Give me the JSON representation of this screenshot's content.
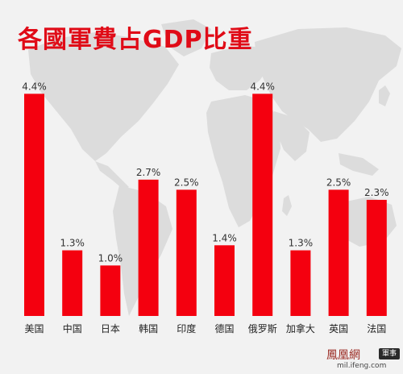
{
  "chart_data": {
    "type": "bar",
    "title": "各國軍費占GDP比重",
    "categories": [
      "美国",
      "中国",
      "日本",
      "韩国",
      "印度",
      "德国",
      "俄罗斯",
      "加拿大",
      "英国",
      "法国"
    ],
    "values": [
      4.4,
      1.3,
      1.0,
      2.7,
      2.5,
      1.4,
      4.4,
      1.3,
      2.5,
      2.3
    ],
    "value_labels": [
      "4.4%",
      "1.3%",
      "1.0%",
      "2.7%",
      "2.5%",
      "1.4%",
      "4.4%",
      "1.3%",
      "2.5%",
      "2.3%"
    ],
    "ylim": [
      0,
      5.3
    ],
    "grid": false,
    "bar_color": "#f4000f",
    "title_color": "#e00b17"
  },
  "watermark": {
    "brand": "鳳凰網",
    "badge": "軍事",
    "url": "mil.ifeng.com"
  }
}
